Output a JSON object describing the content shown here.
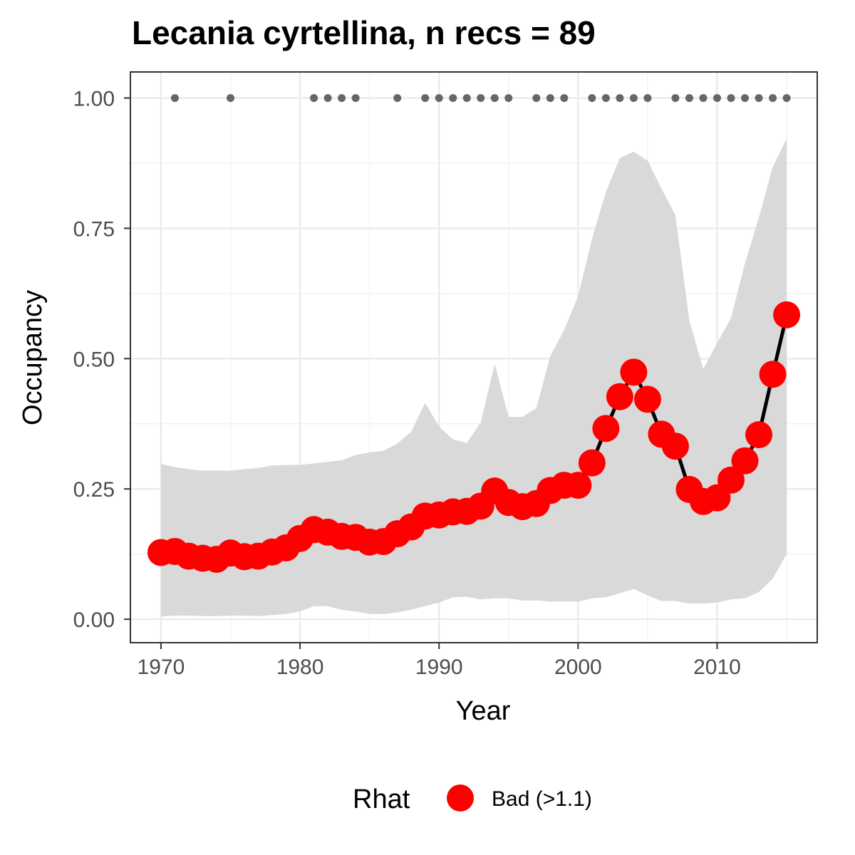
{
  "chart_data": {
    "type": "line",
    "title": "Lecania cyrtellina, n recs = 89",
    "xlabel": "Year",
    "ylabel": "Occupancy",
    "xlim": [
      1967.8,
      2017.2
    ],
    "ylim": [
      -0.045,
      1.05
    ],
    "x_ticks": [
      1970,
      1980,
      1990,
      2000,
      2010
    ],
    "x_tick_labels": [
      "1970",
      "1980",
      "1990",
      "2000",
      "2010"
    ],
    "y_ticks": [
      0,
      0.25,
      0.5,
      0.75,
      1.0
    ],
    "y_tick_labels": [
      "0.00",
      "0.25",
      "0.50",
      "0.75",
      "1.00"
    ],
    "grid": true,
    "x": [
      1970,
      1971,
      1972,
      1973,
      1974,
      1975,
      1976,
      1977,
      1978,
      1979,
      1980,
      1981,
      1982,
      1983,
      1984,
      1985,
      1986,
      1987,
      1988,
      1989,
      1990,
      1991,
      1992,
      1993,
      1994,
      1995,
      1996,
      1997,
      1998,
      1999,
      2000,
      2001,
      2002,
      2003,
      2004,
      2005,
      2006,
      2007,
      2008,
      2009,
      2010,
      2011,
      2012,
      2013,
      2014,
      2015
    ],
    "series": [
      {
        "name": "Occupancy",
        "values": [
          0.128,
          0.13,
          0.121,
          0.117,
          0.115,
          0.127,
          0.12,
          0.121,
          0.129,
          0.137,
          0.155,
          0.172,
          0.167,
          0.159,
          0.157,
          0.148,
          0.149,
          0.164,
          0.177,
          0.198,
          0.2,
          0.206,
          0.207,
          0.217,
          0.246,
          0.224,
          0.216,
          0.222,
          0.247,
          0.257,
          0.257,
          0.3,
          0.366,
          0.427,
          0.474,
          0.422,
          0.355,
          0.332,
          0.249,
          0.226,
          0.233,
          0.267,
          0.304,
          0.354,
          0.47,
          0.584
        ],
        "color": "#ff0000",
        "line_color": "#000000"
      }
    ],
    "ci_lower": [
      0.005,
      0.007,
      0.007,
      0.006,
      0.006,
      0.007,
      0.007,
      0.006,
      0.008,
      0.01,
      0.015,
      0.025,
      0.025,
      0.018,
      0.015,
      0.01,
      0.01,
      0.013,
      0.018,
      0.025,
      0.032,
      0.042,
      0.043,
      0.038,
      0.04,
      0.04,
      0.036,
      0.036,
      0.034,
      0.034,
      0.034,
      0.04,
      0.042,
      0.05,
      0.058,
      0.046,
      0.035,
      0.035,
      0.03,
      0.03,
      0.032,
      0.038,
      0.04,
      0.052,
      0.078,
      0.125
    ],
    "ci_upper": [
      0.298,
      0.292,
      0.288,
      0.285,
      0.285,
      0.285,
      0.288,
      0.29,
      0.295,
      0.296,
      0.296,
      0.299,
      0.302,
      0.305,
      0.315,
      0.32,
      0.323,
      0.337,
      0.36,
      0.415,
      0.37,
      0.345,
      0.338,
      0.378,
      0.49,
      0.388,
      0.388,
      0.405,
      0.505,
      0.555,
      0.62,
      0.73,
      0.82,
      0.885,
      0.897,
      0.88,
      0.826,
      0.775,
      0.573,
      0.48,
      0.53,
      0.578,
      0.683,
      0.77,
      0.868,
      0.922
    ],
    "ci_color": "#d9d9d9",
    "records_y": 1.0,
    "record_years": [
      1971,
      1975,
      1981,
      1982,
      1983,
      1984,
      1987,
      1989,
      1990,
      1991,
      1992,
      1993,
      1994,
      1995,
      1997,
      1998,
      1999,
      2001,
      2002,
      2003,
      2004,
      2005,
      2007,
      2008,
      2009,
      2010,
      2011,
      2012,
      2013,
      2014,
      2015
    ],
    "record_color": "#666666",
    "legend": {
      "title": "Rhat",
      "entries": [
        {
          "label": "Bad (>1.1)",
          "color": "#ff0000"
        }
      ],
      "position": "bottom"
    }
  }
}
